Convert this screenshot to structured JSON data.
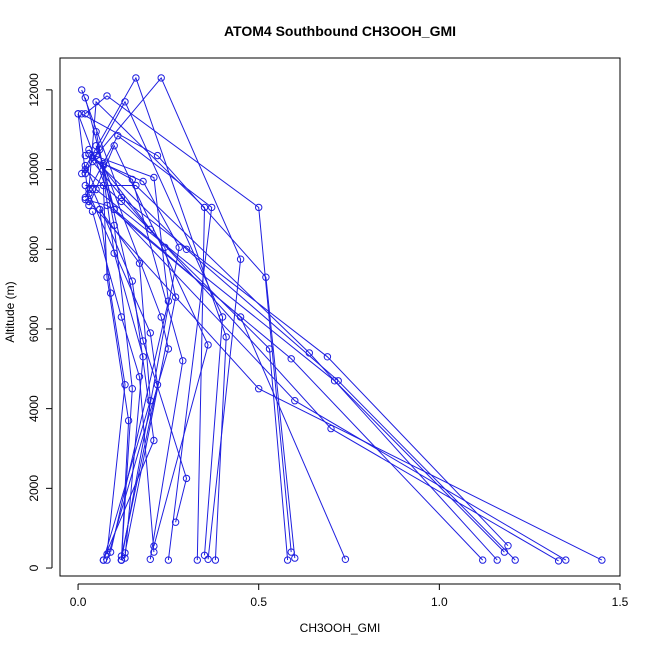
{
  "chart_data": {
    "type": "line",
    "title": "ATOM4 Southbound CH3OOH_GMI",
    "xlabel": "CH3OOH_GMI",
    "ylabel": "Altitude (m)",
    "xlim": [
      -0.05,
      1.5
    ],
    "ylim": [
      -200,
      12800
    ],
    "xticks": [
      0.0,
      0.5,
      1.0,
      1.5
    ],
    "xtick_labels": [
      "0.0",
      "0.5",
      "1.0",
      "1.5"
    ],
    "yticks": [
      0,
      2000,
      4000,
      6000,
      8000,
      10000,
      12000
    ],
    "ytick_labels": [
      "0",
      "2000",
      "4000",
      "6000",
      "8000",
      "10000",
      "12000"
    ],
    "grid": false,
    "color": "#1f1fe0",
    "marker": "open-circle",
    "series": [
      {
        "x": [
          1.45,
          0.5,
          0.03,
          0.0
        ],
        "y": [
          200,
          4500,
          9200,
          11400
        ]
      },
      {
        "x": [
          1.35,
          0.6,
          0.1,
          0.02
        ],
        "y": [
          200,
          4200,
          9000,
          11800
        ]
      },
      {
        "x": [
          1.33,
          0.7,
          0.2,
          0.03
        ],
        "y": [
          180,
          3500,
          8500,
          10500
        ]
      },
      {
        "x": [
          1.21,
          0.72,
          0.3,
          0.04
        ],
        "y": [
          200,
          4700,
          8000,
          10300
        ]
      },
      {
        "x": [
          1.19,
          0.69,
          0.12,
          0.01
        ],
        "y": [
          560,
          5300,
          9300,
          12000
        ]
      },
      {
        "x": [
          1.18,
          0.71,
          0.05,
          0.02
        ],
        "y": [
          400,
          4700,
          9500,
          10100
        ]
      },
      {
        "x": [
          1.16,
          0.64,
          0.16,
          0.02
        ],
        "y": [
          200,
          5400,
          9600,
          9600
        ]
      },
      {
        "x": [
          1.12,
          0.59,
          0.08,
          0.02
        ],
        "y": [
          200,
          5250,
          9100,
          9250
        ]
      },
      {
        "x": [
          0.74,
          0.45,
          0.1,
          0.0
        ],
        "y": [
          220,
          6300,
          9000,
          11400
        ]
      },
      {
        "x": [
          0.6,
          0.52,
          0.22,
          0.01
        ],
        "y": [
          250,
          7300,
          10350,
          11400
        ]
      },
      {
        "x": [
          0.59,
          0.5,
          0.08,
          0.02
        ],
        "y": [
          400,
          9050,
          11850,
          11400
        ]
      },
      {
        "x": [
          0.58,
          0.53,
          0.12,
          0.02
        ],
        "y": [
          200,
          5500,
          9200,
          10000
        ]
      },
      {
        "x": [
          0.38,
          0.41,
          0.16,
          0.01
        ],
        "y": [
          200,
          5800,
          12300,
          9900
        ]
      },
      {
        "x": [
          0.36,
          0.45,
          0.23,
          0.05
        ],
        "y": [
          220,
          7750,
          12300,
          10350
        ]
      },
      {
        "x": [
          0.35,
          0.4,
          0.13,
          0.02
        ],
        "y": [
          320,
          6300,
          11700,
          9900
        ]
      },
      {
        "x": [
          0.33,
          0.35,
          0.05,
          0.03
        ],
        "y": [
          200,
          9050,
          11700,
          9500
        ]
      },
      {
        "x": [
          0.25,
          0.37,
          0.11,
          0.02
        ],
        "y": [
          200,
          9050,
          10850,
          9300
        ]
      },
      {
        "x": [
          0.21,
          0.36,
          0.1,
          0.03
        ],
        "y": [
          550,
          5600,
          10600,
          9100
        ]
      },
      {
        "x": [
          0.2,
          0.29,
          0.15,
          0.07
        ],
        "y": [
          220,
          5200,
          9750,
          10150
        ]
      },
      {
        "x": [
          0.13,
          0.27,
          0.24,
          0.04
        ],
        "y": [
          380,
          6800,
          8050,
          10200
        ]
      },
      {
        "x": [
          0.12,
          0.28,
          0.18,
          0.02
        ],
        "y": [
          200,
          8050,
          9700,
          10350
        ]
      },
      {
        "x": [
          0.09,
          0.25,
          0.21,
          0.03
        ],
        "y": [
          400,
          6700,
          9800,
          10400
        ]
      },
      {
        "x": [
          0.08,
          0.25,
          0.23,
          0.05
        ],
        "y": [
          200,
          5500,
          6300,
          10600
        ]
      },
      {
        "x": [
          0.07,
          0.21,
          0.15,
          0.04
        ],
        "y": [
          200,
          3200,
          7200,
          9500
        ]
      },
      {
        "x": [
          0.07,
          0.2,
          0.17,
          0.06
        ],
        "y": [
          200,
          4200,
          7650,
          9000
        ]
      },
      {
        "x": [
          0.12,
          0.15,
          0.1,
          0.05
        ],
        "y": [
          200,
          4500,
          8600,
          10950
        ]
      },
      {
        "x": [
          0.12,
          0.22,
          0.2,
          0.03
        ],
        "y": [
          300,
          4600,
          5900,
          9400
        ]
      },
      {
        "x": [
          0.27,
          0.3,
          0.18,
          0.07
        ],
        "y": [
          1150,
          2250,
          5700,
          10100
        ]
      },
      {
        "x": [
          0.21,
          0.17,
          0.12,
          0.04
        ],
        "y": [
          400,
          4800,
          6300,
          8950
        ]
      },
      {
        "x": [
          0.08,
          0.13,
          0.09,
          0.06
        ],
        "y": [
          350,
          4600,
          6900,
          9000
        ]
      },
      {
        "x": [
          0.12,
          0.14,
          0.08,
          0.07
        ],
        "y": [
          200,
          3700,
          7300,
          9600
        ]
      },
      {
        "x": [
          0.13,
          0.18,
          0.1,
          0.06
        ],
        "y": [
          250,
          5300,
          7900,
          10500
        ]
      }
    ]
  }
}
